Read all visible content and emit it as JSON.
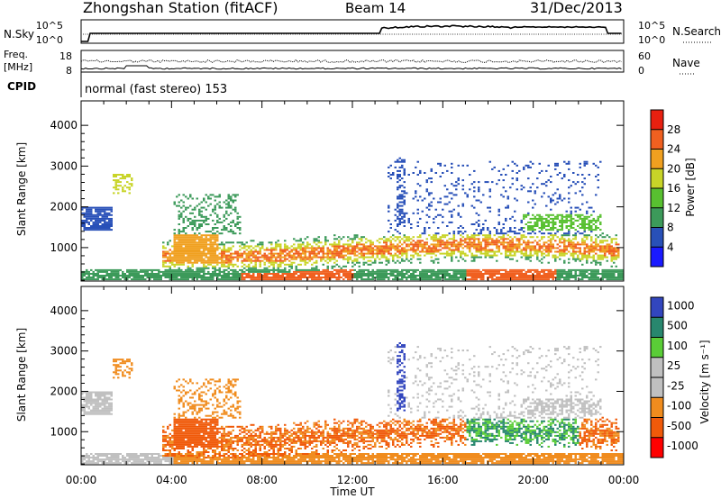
{
  "header": {
    "station": "Zhongshan Station (fitACF)",
    "beam": "Beam 14",
    "date": "31/Dec/2013"
  },
  "panels": {
    "nsky_label": "N.Sky",
    "nsearch_label": "N.Search",
    "nsky_ticks": [
      "10^5",
      "10^0"
    ],
    "nsearch_ticks": [
      "10^5",
      "10^0"
    ],
    "freq_label": "Freq.",
    "freq_unit": "[MHz]",
    "freq_ticks": [
      "18",
      "8"
    ],
    "nave_label": "Nave",
    "nave_ticks": [
      "60",
      "0"
    ],
    "cpid_label": "CPID",
    "cpid_text": "normal (fast stereo) 153"
  },
  "xaxis": {
    "label": "Time UT",
    "ticks": [
      "00:00",
      "04:00",
      "08:00",
      "12:00",
      "16:00",
      "20:00",
      "00:00"
    ]
  },
  "colors": {
    "power": [
      "#1a1aff",
      "#2850b8",
      "#3c9a5a",
      "#58c030",
      "#c8d428",
      "#f0a020",
      "#f06020",
      "#e82010"
    ],
    "velocity": [
      "#ff0000",
      "#f05a0a",
      "#f08c1e",
      "#c0c0c0",
      "#c0c0c0",
      "#5acd37",
      "#28876e",
      "#3246be"
    ]
  },
  "chart_data": [
    {
      "type": "heatmap",
      "name": "power",
      "ylabel": "Slant Range [km]",
      "yticks": [
        1000,
        2000,
        3000,
        4000
      ],
      "ylim": [
        180,
        4600
      ],
      "xlim_hours": [
        0,
        24
      ],
      "colorbar": {
        "label": "Power [dB]",
        "ticks": [
          4,
          8,
          12,
          16,
          20,
          24,
          28
        ],
        "range": [
          0,
          32
        ]
      }
    },
    {
      "type": "heatmap",
      "name": "velocity",
      "ylabel": "Slant Range [km]",
      "yticks": [
        1000,
        2000,
        3000,
        4000
      ],
      "ylim": [
        180,
        4600
      ],
      "xlim_hours": [
        0,
        24
      ],
      "colorbar": {
        "label": "Velocity [m s⁻¹]",
        "ticks": [
          "1000",
          "500",
          "100",
          "25",
          "-25",
          "-100",
          "-500",
          "-1000"
        ]
      }
    }
  ]
}
